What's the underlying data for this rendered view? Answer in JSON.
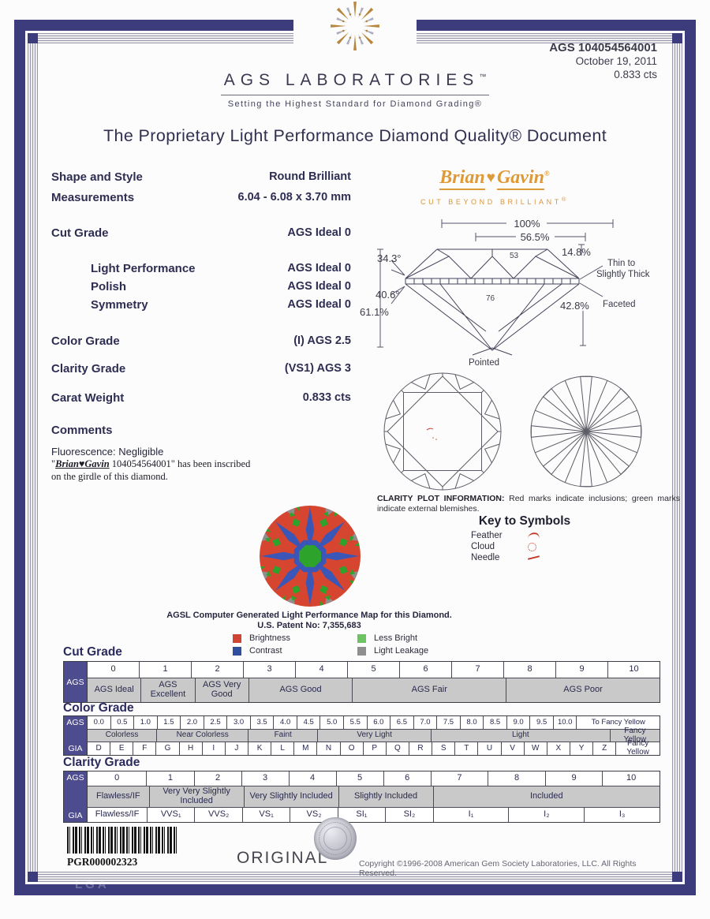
{
  "report": {
    "number": "AGS 104054564001",
    "date": "October 19, 2011",
    "carat": "0.833 cts"
  },
  "header": {
    "lab": "AGS LABORATORIES",
    "lab_tm": "™",
    "tagline": "Setting the Highest Standard for Diamond Grading®"
  },
  "title": "The Proprietary Light Performance Diamond Quality® Document",
  "brand": {
    "name_left": "Brian",
    "heart": "♥",
    "name_right": "Gavin",
    "reg": "®",
    "tagline": "CUT BEYOND BRILLIANT",
    "tagline_reg": "®"
  },
  "fields": [
    {
      "label": "Shape and Style",
      "value": "Round Brilliant",
      "indent": false
    },
    {
      "label": "Measurements",
      "value": "6.04 - 6.08 x 3.70 mm",
      "indent": false
    },
    {
      "label": "Cut Grade",
      "value": "AGS Ideal 0",
      "indent": false
    },
    {
      "label": "Light Performance",
      "value": "AGS Ideal 0",
      "indent": true
    },
    {
      "label": "Polish",
      "value": "AGS Ideal 0",
      "indent": true
    },
    {
      "label": "Symmetry",
      "value": "AGS Ideal 0",
      "indent": true
    },
    {
      "label": "Color Grade",
      "value": "(I) AGS 2.5",
      "indent": false
    },
    {
      "label": "Clarity Grade",
      "value": "(VS1) AGS 3",
      "indent": false
    },
    {
      "label": "Carat Weight",
      "value": "0.833 cts",
      "indent": false
    }
  ],
  "comments": {
    "heading": "Comments",
    "fluorescence": "Fluorescence: Negligible",
    "insc_pre": "\"",
    "insc_brand": "Brian♥Gavin",
    "insc_post": " 104054564001\" has been inscribed",
    "insc_line2": "on the girdle of this diamond."
  },
  "profile": {
    "total": "100%",
    "table": "56.5%",
    "crown_angle": "34.3°",
    "pavilion_angle": "40.6°",
    "depth": "61.1%",
    "star": "53",
    "lower_girdle": "76",
    "crown_height": "14.8%",
    "pavilion_depth": "42.8%",
    "girdle1": "Thin to",
    "girdle2": "Slightly Thick",
    "girdle3": "Faceted",
    "culet": "Pointed"
  },
  "clarity_plot": {
    "info_label": "CLARITY PLOT INFORMATION:",
    "info_text": " Red marks indicate inclusions; green marks indicate external blemishes.",
    "key_title": "Key to Symbols",
    "symbols": [
      {
        "name": "Feather",
        "glyph": "feather"
      },
      {
        "name": "Cloud",
        "glyph": "cloud"
      },
      {
        "name": "Needle",
        "glyph": "needle"
      }
    ]
  },
  "light_map": {
    "caption1": "AGSL Computer Generated Light Performance Map for this Diamond.",
    "caption2": "U.S. Patent No: 7,355,683",
    "legend": [
      {
        "label": "Brightness",
        "color": "#cf4433"
      },
      {
        "label": "Contrast",
        "color": "#2f4f9e"
      },
      {
        "label": "Less Bright",
        "color": "#6dc361"
      },
      {
        "label": "Light Leakage",
        "color": "#8f8f8f"
      }
    ],
    "colors": {
      "brightness": "#d5452f",
      "contrast": "#3a57b8",
      "less_bright": "#2ea32b",
      "leakage": "#8f8f8f"
    }
  },
  "scales": {
    "cut": {
      "heading": "Cut Grade",
      "org": "AGS",
      "numbers": [
        "0",
        "1",
        "2",
        "3",
        "4",
        "5",
        "6",
        "7",
        "8",
        "9",
        "10"
      ],
      "bands": [
        {
          "label": "AGS Ideal",
          "span": 1
        },
        {
          "label": "AGS Excellent",
          "span": 1
        },
        {
          "label": "AGS Very Good",
          "span": 1
        },
        {
          "label": "AGS Good",
          "span": 2
        },
        {
          "label": "AGS Fair",
          "span": 3
        },
        {
          "label": "AGS Poor",
          "span": 3
        }
      ]
    },
    "color": {
      "heading": "Color Grade",
      "org_top": "AGS",
      "org_bottom": "GIA",
      "ags": [
        {
          "label": "0.0",
          "span": 1
        },
        {
          "label": "0.5",
          "span": 1
        },
        {
          "label": "1.0",
          "span": 1
        },
        {
          "label": "1.5",
          "span": 1
        },
        {
          "label": "2.0",
          "span": 1
        },
        {
          "label": "2.5",
          "span": 1
        },
        {
          "label": "3.0",
          "span": 1
        },
        {
          "label": "3.5",
          "span": 1
        },
        {
          "label": "4.0",
          "span": 1
        },
        {
          "label": "4.5",
          "span": 1
        },
        {
          "label": "5.0",
          "span": 1
        },
        {
          "label": "5.5",
          "span": 1
        },
        {
          "label": "6.0",
          "span": 1
        },
        {
          "label": "6.5",
          "span": 1
        },
        {
          "label": "7.0",
          "span": 1
        },
        {
          "label": "7.5",
          "span": 1
        },
        {
          "label": "8.0",
          "span": 1
        },
        {
          "label": "8.5",
          "span": 1
        },
        {
          "label": "9.0",
          "span": 1
        },
        {
          "label": "9.5",
          "span": 1
        },
        {
          "label": "10.0",
          "span": 1
        },
        {
          "label": "To Fancy Yellow",
          "span": 4.1
        }
      ],
      "bands": [
        {
          "label": "Colorless",
          "span": 3
        },
        {
          "label": "Near Colorless",
          "span": 4
        },
        {
          "label": "Faint",
          "span": 3
        },
        {
          "label": "Very Light",
          "span": 5
        },
        {
          "label": "Light",
          "span": 8
        },
        {
          "label": "Fancy Yellow",
          "span": 2.1
        }
      ],
      "gia": [
        {
          "label": "D",
          "span": 1
        },
        {
          "label": "E",
          "span": 1
        },
        {
          "label": "F",
          "span": 1
        },
        {
          "label": "G",
          "span": 1
        },
        {
          "label": "H",
          "span": 1
        },
        {
          "label": "I",
          "span": 1
        },
        {
          "label": "J",
          "span": 1
        },
        {
          "label": "K",
          "span": 1
        },
        {
          "label": "L",
          "span": 1
        },
        {
          "label": "M",
          "span": 1
        },
        {
          "label": "N",
          "span": 1
        },
        {
          "label": "O",
          "span": 1
        },
        {
          "label": "P",
          "span": 1
        },
        {
          "label": "Q",
          "span": 1
        },
        {
          "label": "R",
          "span": 1
        },
        {
          "label": "S",
          "span": 1
        },
        {
          "label": "T",
          "span": 1
        },
        {
          "label": "U",
          "span": 1
        },
        {
          "label": "V",
          "span": 1
        },
        {
          "label": "W",
          "span": 1
        },
        {
          "label": "X",
          "span": 1
        },
        {
          "label": "Y",
          "span": 1
        },
        {
          "label": "Z",
          "span": 1
        },
        {
          "label": "Fancy Yellow",
          "span": 2.1
        }
      ]
    },
    "clarity": {
      "heading": "Clarity Grade",
      "org_top": "AGS",
      "org_bottom": "GIA",
      "numbers": [
        {
          "label": "0",
          "span": 10.5
        },
        {
          "label": "1",
          "span": 8.2
        },
        {
          "label": "2",
          "span": 8.2
        },
        {
          "label": "3",
          "span": 8.2
        },
        {
          "label": "4",
          "span": 8.2
        },
        {
          "label": "5",
          "span": 8.2
        },
        {
          "label": "6",
          "span": 8.2
        },
        {
          "label": "7",
          "span": 10.07
        },
        {
          "label": "8",
          "span": 10.07
        },
        {
          "label": "9",
          "span": 10.07
        },
        {
          "label": "10",
          "span": 10.07
        }
      ],
      "bands": [
        {
          "label": "Flawless/IF",
          "span": 10.5
        },
        {
          "label": "Very Very Slightly Included",
          "span": 16.4
        },
        {
          "label": "Very Slightly Included",
          "span": 16.4
        },
        {
          "label": "Slightly Included",
          "span": 16.4
        },
        {
          "label": "Included",
          "span": 40.28
        }
      ],
      "gia": [
        {
          "label": "Flawless/IF",
          "span": 10.5
        },
        {
          "label": "VVS₁",
          "span": 8.2
        },
        {
          "label": "VVS₂",
          "span": 8.2
        },
        {
          "label": "VS₁",
          "span": 8.2
        },
        {
          "label": "VS₂",
          "span": 8.2
        },
        {
          "label": "SI₁",
          "span": 8.2
        },
        {
          "label": "SI₂",
          "span": 8.2
        },
        {
          "label": "I₁",
          "span": 13.43
        },
        {
          "label": "I₂",
          "span": 13.43
        },
        {
          "label": "I₃",
          "span": 13.42
        }
      ]
    }
  },
  "footer": {
    "barcode_text": "PGR000002323",
    "original": "ORIGINAL",
    "copyright": "Copyright ©1996-2008 American Gem Society Laboratories, LLC. All Rights Reserved.",
    "watermark": "LGA"
  }
}
